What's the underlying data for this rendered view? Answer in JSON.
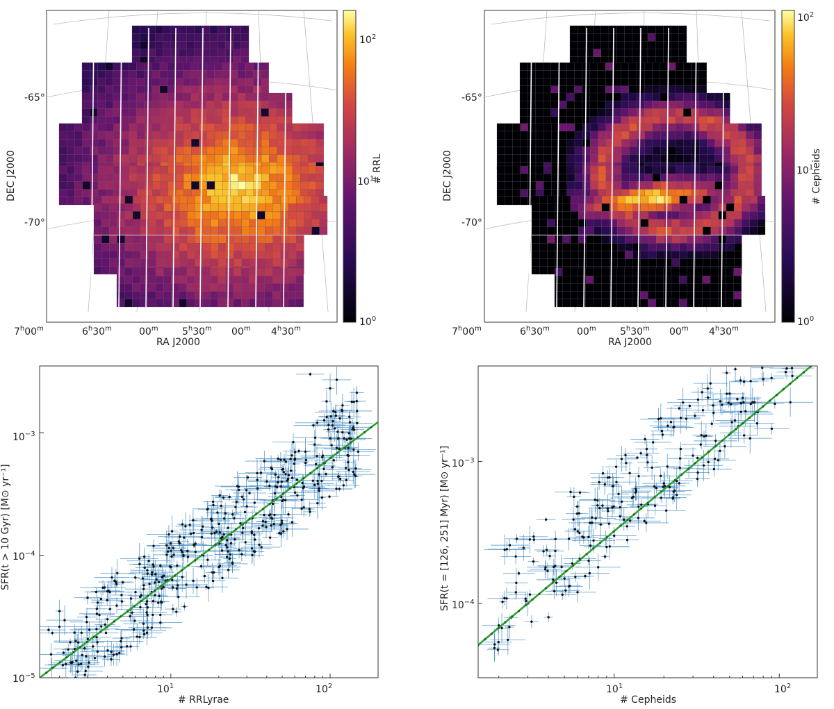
{
  "chart_data": [
    {
      "type": "heatmap",
      "panel": "top-left",
      "xlabel": "RA J2000",
      "ylabel": "DEC J2000",
      "x_ticks": [
        "7h00m",
        "6h30m",
        "00m",
        "5h30m",
        "00m",
        "4h30m"
      ],
      "y_ticks": [
        "-65°",
        "-70°"
      ],
      "colorbar": {
        "label": "# RRL",
        "scale": "log",
        "ticks": [
          "10^0",
          "10^1",
          "10^2"
        ],
        "range": [
          1,
          130
        ],
        "colormap": "inferno"
      },
      "peak_region": "center (bright yellow, ~100 RRL per tile)",
      "edge_values": "~5–20 RRL per tile"
    },
    {
      "type": "heatmap",
      "panel": "top-right",
      "xlabel": "RA J2000",
      "ylabel": "DEC J2000",
      "x_ticks": [
        "7h00m",
        "6h30m",
        "00m",
        "5h30m",
        "00m",
        "4h30m"
      ],
      "y_ticks": [
        "-65°",
        "-70°"
      ],
      "colorbar": {
        "label": "# Cepheids",
        "scale": "log",
        "ticks": [
          "10^0",
          "10^1",
          "10^2"
        ],
        "range": [
          1,
          110
        ],
        "colormap": "inferno"
      },
      "peak_region": "bar (elongated, ~100 Cepheids per tile)",
      "edge_values": "mostly 0–1 Cepheids per tile (black)"
    },
    {
      "type": "scatter",
      "panel": "bottom-left",
      "xlabel": "# RRLyrae",
      "ylabel": "SFR(t > 10 Gyr) [M⊙ yr⁻¹]",
      "xscale": "log",
      "yscale": "log",
      "xlim": [
        1.5,
        200
      ],
      "ylim": [
        1e-05,
        0.0035
      ],
      "x_ticks": [
        "10^1",
        "10^2"
      ],
      "y_ticks": [
        "10^-5",
        "10^-4",
        "10^-3"
      ],
      "fit_line": {
        "color": "#2ca02c",
        "points": [
          [
            1.5,
            1e-05
          ],
          [
            200,
            0.00122
          ]
        ]
      },
      "marker_color": "#111111",
      "errorbar_color": "#4a90c8",
      "sample_points": [
        [
          2,
          3.5e-05
        ],
        [
          3,
          4.5e-05
        ],
        [
          4,
          3e-05
        ],
        [
          5,
          6e-05
        ],
        [
          6,
          5e-05
        ],
        [
          7,
          4e-05
        ],
        [
          8,
          7e-05
        ],
        [
          9,
          5.5e-05
        ],
        [
          10,
          8e-05
        ],
        [
          12,
          0.0001
        ],
        [
          14,
          0.00012
        ],
        [
          16,
          0.0001
        ],
        [
          18,
          0.00015
        ],
        [
          20,
          0.00018
        ],
        [
          22,
          0.00022
        ],
        [
          25,
          0.0002
        ],
        [
          28,
          0.0003
        ],
        [
          30,
          0.00025
        ],
        [
          35,
          0.00035
        ],
        [
          40,
          0.0004
        ],
        [
          45,
          0.00032
        ],
        [
          50,
          0.0005
        ],
        [
          55,
          0.00045
        ],
        [
          60,
          0.0006
        ],
        [
          70,
          0.0007
        ],
        [
          80,
          0.0008
        ],
        [
          90,
          0.00065
        ],
        [
          100,
          0.0009
        ],
        [
          110,
          0.00075
        ],
        [
          130,
          0.00065
        ],
        [
          150,
          0.0007
        ],
        [
          75,
          0.003
        ],
        [
          100,
          0.0023
        ],
        [
          110,
          0.0027
        ],
        [
          95,
          0.0018
        ],
        [
          105,
          0.0015
        ]
      ]
    },
    {
      "type": "scatter",
      "panel": "bottom-right",
      "xlabel": "# Cepheids",
      "ylabel": "SFR(t = [126, 251] Myr) [M⊙ yr⁻¹]",
      "xscale": "log",
      "yscale": "log",
      "xlim": [
        1.5,
        170
      ],
      "ylim": [
        3e-05,
        0.0047
      ],
      "x_ticks": [
        "10^1",
        "10^2"
      ],
      "y_ticks": [
        "10^-4",
        "10^-3"
      ],
      "fit_line": {
        "color": "#2ca02c",
        "points": [
          [
            1.5,
            5.1e-05
          ],
          [
            170,
            0.0051
          ]
        ]
      },
      "marker_color": "#111111",
      "errorbar_color": "#4a90c8",
      "sample_points": [
        [
          2,
          7e-05
        ],
        [
          3,
          0.0001
        ],
        [
          4,
          8e-05
        ],
        [
          5,
          0.00015
        ],
        [
          6,
          0.00012
        ],
        [
          7,
          0.0002
        ],
        [
          8,
          0.00018
        ],
        [
          9,
          0.00025
        ],
        [
          10,
          0.0003
        ],
        [
          12,
          0.00028
        ],
        [
          14,
          0.0004
        ],
        [
          16,
          0.0005
        ],
        [
          18,
          0.00065
        ],
        [
          20,
          0.0007
        ],
        [
          25,
          0.0009
        ],
        [
          30,
          0.0011
        ],
        [
          35,
          0.0015
        ],
        [
          40,
          0.0022
        ],
        [
          45,
          0.0025
        ],
        [
          50,
          0.003
        ],
        [
          48,
          0.0042
        ],
        [
          60,
          0.0028
        ],
        [
          80,
          0.0038
        ],
        [
          90,
          0.0017
        ],
        [
          120,
          0.004
        ]
      ]
    }
  ]
}
